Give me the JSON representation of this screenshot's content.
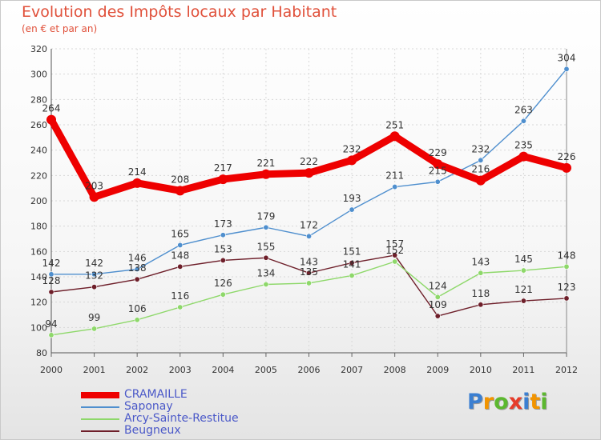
{
  "chart_data": {
    "type": "line",
    "title": "Evolution des Impôts locaux par Habitant",
    "subtitle": "(en € et par an)",
    "x": [
      "2000",
      "2001",
      "2002",
      "2003",
      "2004",
      "2005",
      "2006",
      "2007",
      "2008",
      "2009",
      "2010",
      "2011",
      "2012"
    ],
    "ylim": [
      80,
      320
    ],
    "yticks": [
      80,
      100,
      120,
      140,
      160,
      180,
      200,
      220,
      240,
      260,
      280,
      300,
      320
    ],
    "grid": true,
    "legend_position": "bottom-left",
    "series": [
      {
        "name": "CRAMAILLE",
        "color": "#ee0000",
        "values": [
          264,
          203,
          214,
          208,
          217,
          221,
          222,
          232,
          251,
          229,
          216,
          235,
          226
        ]
      },
      {
        "name": "Saponay",
        "color": "#4f8fce",
        "values": [
          142,
          142,
          146,
          165,
          173,
          179,
          172,
          193,
          211,
          215,
          232,
          263,
          304
        ]
      },
      {
        "name": "Arcy-Sainte-Restitue",
        "color": "#8ed86a",
        "values": [
          94,
          99,
          106,
          116,
          126,
          134,
          135,
          141,
          152,
          124,
          143,
          145,
          148
        ]
      },
      {
        "name": "Beugneux",
        "color": "#6e1f2a",
        "values": [
          128,
          132,
          138,
          148,
          153,
          155,
          143,
          151,
          157,
          109,
          118,
          121,
          123
        ]
      }
    ]
  },
  "logo": {
    "text": "Proxiti",
    "letter_colors": [
      "#3b7fd1",
      "#f29400",
      "#5cb82f",
      "#e63c2a",
      "#3b7fd1",
      "#f29400",
      "#5cb82f"
    ]
  }
}
